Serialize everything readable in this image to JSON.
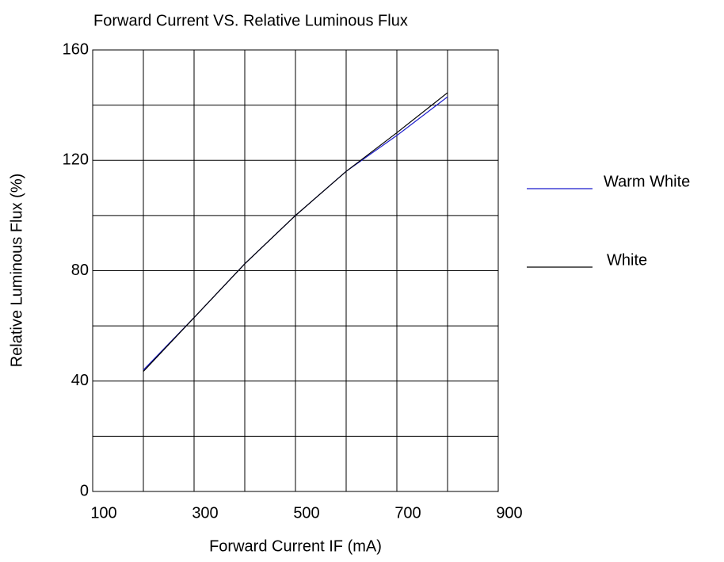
{
  "chart_data": {
    "type": "line",
    "title": "Forward Current VS. Relative Luminous Flux",
    "xlabel": "Forward Current IF (mA)",
    "ylabel": "Relative  Luminous  Flux  (%)",
    "x": [
      200,
      300,
      400,
      500,
      600,
      700,
      800
    ],
    "series": [
      {
        "name": "Warm White",
        "color": "#1a1acc",
        "values": [
          44,
          63,
          82.5,
          100,
          116,
          129,
          143
        ]
      },
      {
        "name": "White",
        "color": "#000000",
        "values": [
          43.5,
          63,
          82.5,
          100,
          116,
          130,
          144.5
        ]
      }
    ],
    "xlim": [
      100,
      900
    ],
    "xticks": [
      100,
      300,
      500,
      700,
      900
    ],
    "xminorticks": [
      200,
      400,
      600,
      800
    ],
    "ylim": [
      0,
      160
    ],
    "yticks": [
      0,
      40,
      80,
      120,
      160
    ],
    "yminorticks": [
      20,
      60,
      100,
      140
    ],
    "grid": true,
    "legend": "right"
  }
}
